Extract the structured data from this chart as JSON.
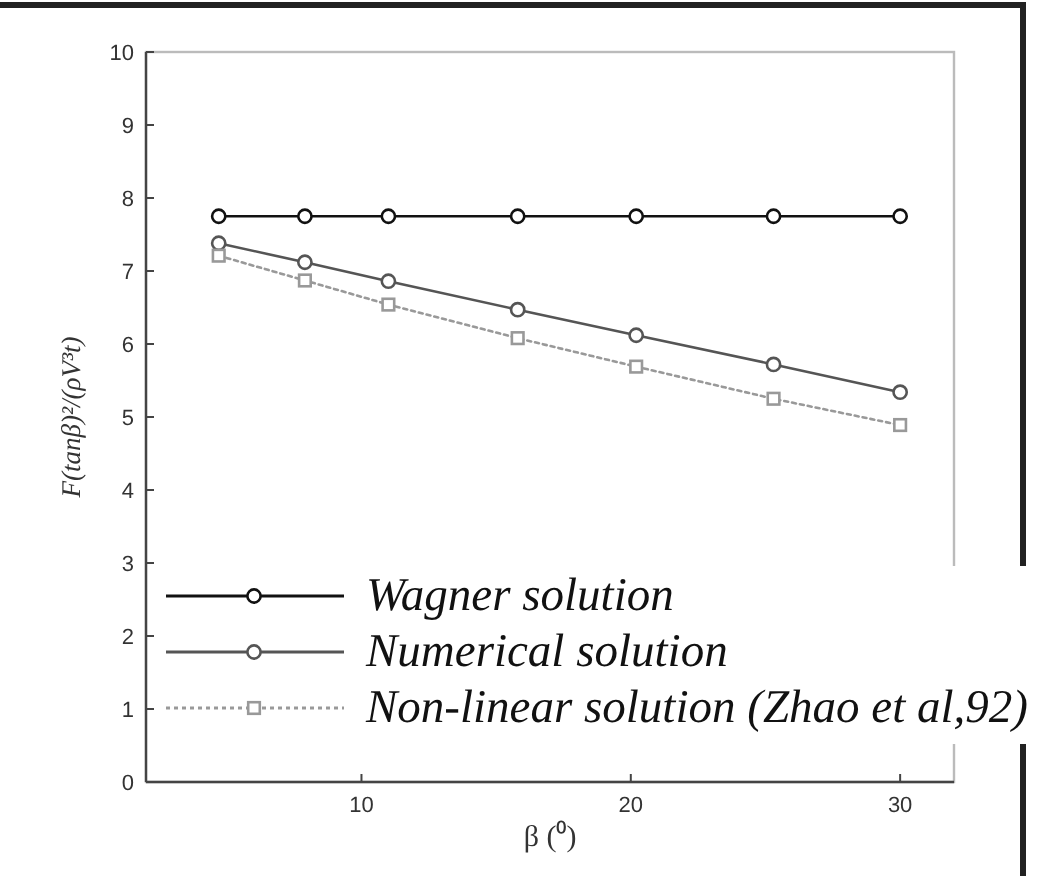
{
  "chart_data": {
    "type": "line",
    "xlabel": "β (⁰)",
    "ylabel": "F(tanβ)²/(ρV³t)",
    "x": [
      4.7,
      7.9,
      11,
      15.8,
      20.2,
      25.3,
      30
    ],
    "xlim": [
      2,
      32
    ],
    "xticks": [
      10,
      20,
      30
    ],
    "ylim": [
      0,
      10
    ],
    "yticks": [
      0,
      1,
      2,
      3,
      4,
      5,
      6,
      7,
      8,
      9,
      10
    ],
    "legend": "bottom",
    "series": [
      {
        "name": "Wagner solution",
        "color": "#111111",
        "marker": "circle",
        "line_style": "solid",
        "values": [
          7.75,
          7.75,
          7.75,
          7.75,
          7.75,
          7.75,
          7.75
        ]
      },
      {
        "name": "Numerical solution",
        "color": "#555555",
        "marker": "circle",
        "line_style": "solid",
        "values": [
          7.38,
          7.12,
          6.86,
          6.47,
          6.12,
          5.72,
          5.34
        ]
      },
      {
        "name": "Non-linear solution (Zhao et al,92)",
        "color": "#999999",
        "marker": "square",
        "line_style": "dotted",
        "values": [
          7.21,
          6.87,
          6.54,
          6.08,
          5.69,
          5.25,
          4.89
        ]
      }
    ]
  }
}
